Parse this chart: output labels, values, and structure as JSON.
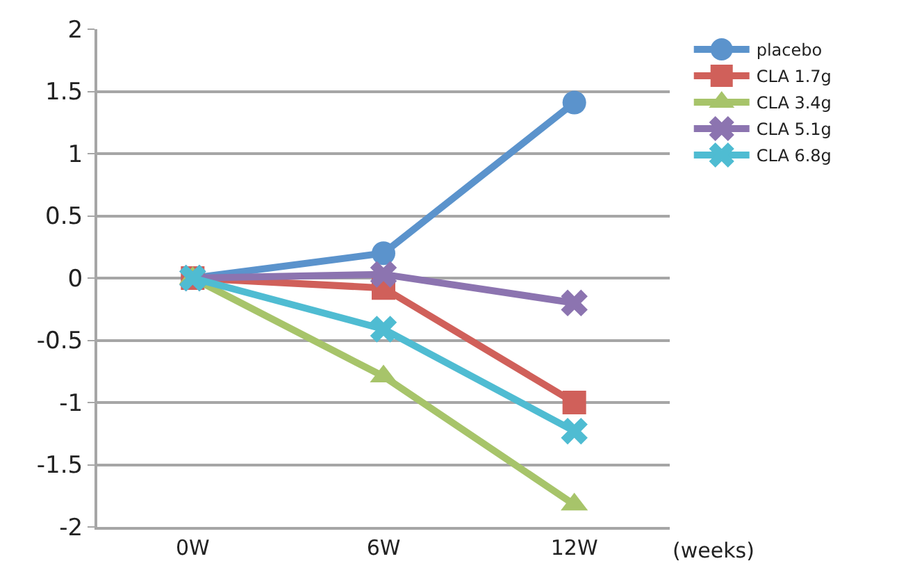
{
  "chart_data": {
    "type": "line",
    "xlabel": "(weeks)",
    "categories": [
      "0W",
      "6W",
      "12W"
    ],
    "series": [
      {
        "name": "placebo",
        "color": "#5b93cc",
        "marker": "circle",
        "values": [
          0,
          0.2,
          1.41
        ]
      },
      {
        "name": "CLA 1.7g",
        "color": "#d0605a",
        "marker": "square",
        "values": [
          0,
          -0.08,
          -1.0
        ]
      },
      {
        "name": "CLA 3.4g",
        "color": "#a7c46a",
        "marker": "triangle",
        "values": [
          0,
          -0.79,
          -1.82
        ]
      },
      {
        "name": "CLA 5.1g",
        "color": "#8c74b0",
        "marker": "cross",
        "values": [
          0,
          0.03,
          -0.2
        ]
      },
      {
        "name": "CLA 6.8g",
        "color": "#4fbcd2",
        "marker": "cross",
        "values": [
          0,
          -0.41,
          -1.23
        ]
      }
    ],
    "ylim": [
      -2,
      2
    ],
    "yticks": [
      -2,
      -1.5,
      -1,
      -0.5,
      0,
      0.5,
      1,
      1.5,
      2
    ],
    "grid": "y",
    "legend": "right",
    "line_style": "solid"
  }
}
